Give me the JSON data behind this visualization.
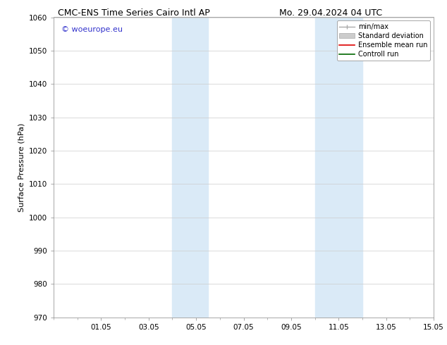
{
  "title_left": "CMC-ENS Time Series Cairo Intl AP",
  "title_right": "Mo. 29.04.2024 04 UTC",
  "ylabel": "Surface Pressure (hPa)",
  "ylim": [
    970,
    1060
  ],
  "yticks": [
    970,
    980,
    990,
    1000,
    1010,
    1020,
    1030,
    1040,
    1050,
    1060
  ],
  "xlim": [
    0,
    16
  ],
  "xtick_labels": [
    "01.05",
    "03.05",
    "05.05",
    "07.05",
    "09.05",
    "11.05",
    "13.05",
    "15.05"
  ],
  "xtick_positions": [
    2,
    4,
    6,
    8,
    10,
    12,
    14,
    16
  ],
  "shaded_regions": [
    {
      "x_start": 5.0,
      "x_end": 6.5,
      "color": "#daeaf7"
    },
    {
      "x_start": 11.0,
      "x_end": 13.0,
      "color": "#daeaf7"
    }
  ],
  "legend_entries": [
    {
      "label": "min/max",
      "color": "#aaaaaa",
      "type": "minmax"
    },
    {
      "label": "Standard deviation",
      "color": "#cccccc",
      "type": "fill"
    },
    {
      "label": "Ensemble mean run",
      "color": "#dd0000",
      "type": "line"
    },
    {
      "label": "Controll run",
      "color": "#006600",
      "type": "line"
    }
  ],
  "watermark_text": "© woeurope.eu",
  "watermark_color": "#3333cc",
  "background_color": "#ffffff",
  "grid_color": "#cccccc",
  "spine_color": "#999999",
  "title_fontsize": 9,
  "ylabel_fontsize": 8,
  "tick_fontsize": 7.5,
  "legend_fontsize": 7,
  "watermark_fontsize": 8
}
